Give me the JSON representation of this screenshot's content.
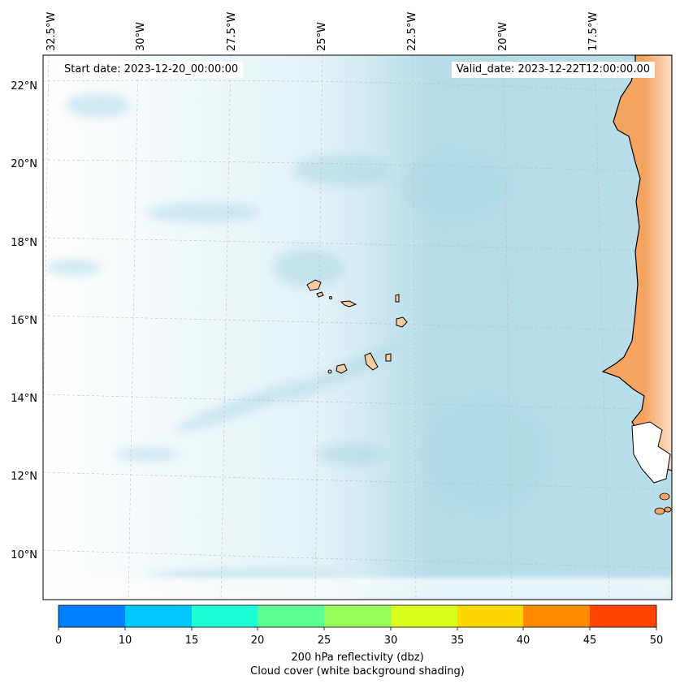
{
  "header": {
    "start_date": "Start date: 2023-12-20_00:00:00",
    "valid_date": "Valid_date: 2023-12-22T12:00:00.00"
  },
  "map": {
    "lon_labels": [
      "32.5°W",
      "30°W",
      "27.5°W",
      "25°W",
      "22.5°W",
      "20°W",
      "17.5°W"
    ],
    "lat_labels": [
      "22°N",
      "20°N",
      "18°N",
      "16°N",
      "14°N",
      "12°N",
      "10°N"
    ],
    "colors": {
      "land": "#f4a460",
      "islands": "#f8cba0",
      "cloud": "#add8e6",
      "coastline": "#000000",
      "gridline": "#bbbbbb"
    }
  },
  "colorbar": {
    "ticks": [
      "0",
      "10",
      "15",
      "20",
      "25",
      "30",
      "35",
      "40",
      "45",
      "50"
    ],
    "colors": [
      "#0080ff",
      "#00c8ff",
      "#1effd8",
      "#5cff90",
      "#98ff5a",
      "#d8ff1e",
      "#ffd800",
      "#ff8c00",
      "#ff4400"
    ],
    "label_line1": "200 hPa reflectivity (dbz)",
    "label_line2": "Cloud cover (white background shading)"
  }
}
